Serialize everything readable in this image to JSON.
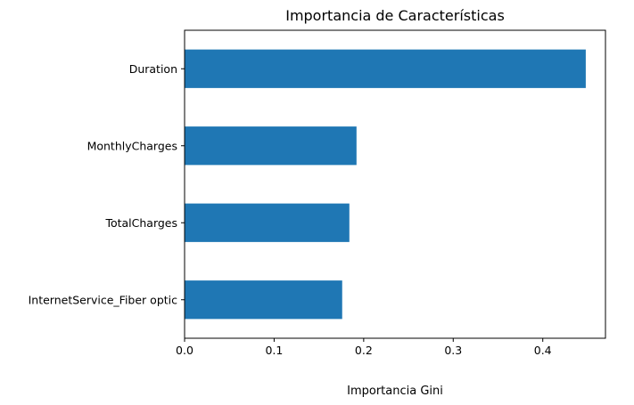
{
  "chart_data": {
    "type": "bar",
    "orientation": "horizontal",
    "title": "Importancia de Características",
    "xlabel": "Importancia Gini",
    "ylabel": "",
    "categories": [
      "Duration",
      "MonthlyCharges",
      "TotalCharges",
      "InternetService_Fiber optic"
    ],
    "values": [
      0.448,
      0.192,
      0.184,
      0.176
    ],
    "xlim": [
      0,
      0.47
    ],
    "xticks": [
      0.0,
      0.1,
      0.2,
      0.3,
      0.4
    ],
    "xtick_labels": [
      "0.0",
      "0.1",
      "0.2",
      "0.3",
      "0.4"
    ],
    "bar_color": "#1f77b4",
    "grid": false,
    "legend": "none"
  }
}
